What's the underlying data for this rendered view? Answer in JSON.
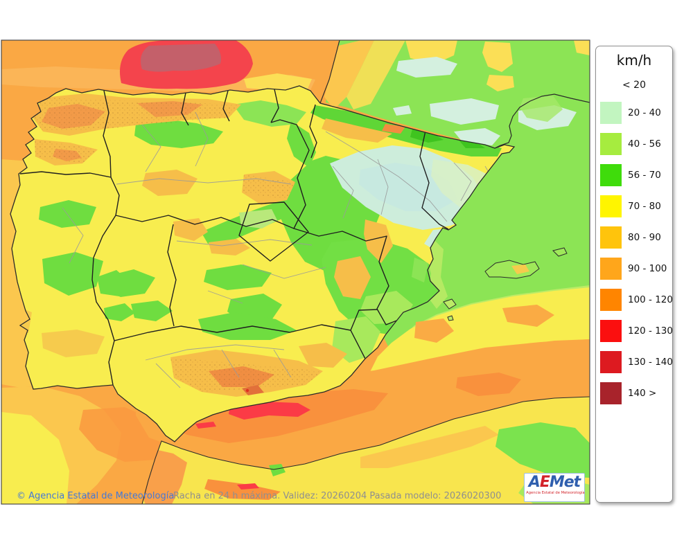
{
  "legend": {
    "title": "km/h",
    "entries": [
      {
        "label": "< 20",
        "color": ""
      },
      {
        "label": "20 - 40",
        "color": "#C2F5C0"
      },
      {
        "label": "40 - 56",
        "color": "#A6EC3F"
      },
      {
        "label": "56 - 70",
        "color": "#3FDC0B"
      },
      {
        "label": "70 - 80",
        "color": "#FFF500"
      },
      {
        "label": "80 - 90",
        "color": "#FFC40C"
      },
      {
        "label": "90 - 100",
        "color": "#FFA61B"
      },
      {
        "label": "100 - 120",
        "color": "#FF8500"
      },
      {
        "label": "120 - 130",
        "color": "#FB0F0F"
      },
      {
        "label": "130 - 140",
        "color": "#DD1A20"
      },
      {
        "label": "140 >",
        "color": "#A8232B"
      }
    ]
  },
  "footer": {
    "copyright": "© Agencia Estatal de Meteorología",
    "caption": "Racha en 24 h máxima. Validez: 20260204 Pasada modelo: 2026020300"
  },
  "logo": {
    "letters": [
      {
        "ch": "A",
        "color": "#2f5fae"
      },
      {
        "ch": "E",
        "color": "#d2232a"
      },
      {
        "ch": "M",
        "color": "#2f5fae"
      },
      {
        "ch": "e",
        "color": "#2f5fae"
      },
      {
        "ch": "t",
        "color": "#2f5fae"
      }
    ],
    "tagline": "Agencia Estatal de Meteorología"
  },
  "map": {
    "palette": {
      "sea_orange": "#FAA844",
      "deep_orange": "#F9913D",
      "biscay_red": "#F4444C",
      "biscay_core": "#C4606A",
      "alboran_red": "#FB3B46",
      "yellow": "#F8ED4F",
      "amber": "#F6BE49",
      "orange_land": "#F29A48",
      "green": "#6FDD40",
      "mid_green": "#8CE455",
      "light_green": "#A8E95C",
      "yellow_green": "#BCEB66",
      "mint": "#CDEDDB",
      "mint_blue": "#C7E9E0"
    }
  }
}
